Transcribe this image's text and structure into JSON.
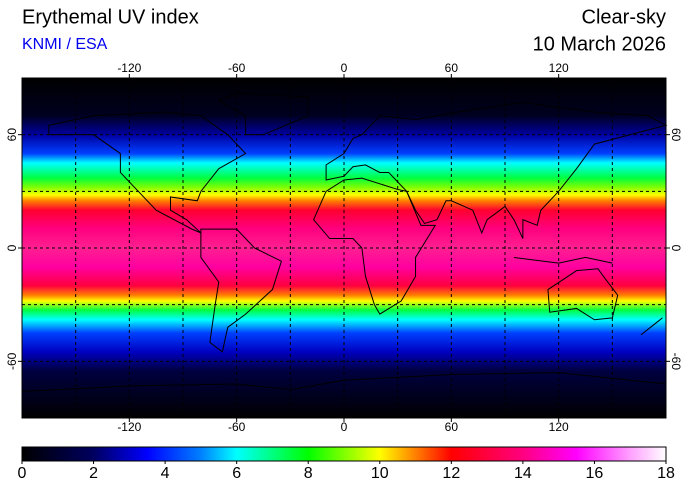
{
  "header": {
    "title": "Erythemal UV index",
    "source": "KNMI / ESA",
    "condition": "Clear-sky",
    "date": "10 March 2026"
  },
  "map": {
    "xlim": [
      -180,
      180
    ],
    "ylim": [
      -90,
      90
    ],
    "lon_ticks": [
      -120,
      -60,
      0,
      60,
      120
    ],
    "lat_ticks": [
      60,
      0,
      -60
    ],
    "grid_lon": [
      -150,
      -120,
      -90,
      -60,
      -30,
      0,
      30,
      60,
      90,
      120,
      150
    ],
    "grid_lat": [
      -60,
      -30,
      0,
      30,
      60
    ]
  },
  "colorbar": {
    "range": [
      0,
      18
    ],
    "ticks": [
      0,
      2,
      4,
      6,
      8,
      10,
      12,
      14,
      16,
      18
    ],
    "colormap": [
      {
        "value": 0,
        "color": "#000000"
      },
      {
        "value": 2,
        "color": "#000060"
      },
      {
        "value": 3.5,
        "color": "#0000ff"
      },
      {
        "value": 5,
        "color": "#0080ff"
      },
      {
        "value": 6,
        "color": "#00ffff"
      },
      {
        "value": 8,
        "color": "#00ff00"
      },
      {
        "value": 9,
        "color": "#80ff00"
      },
      {
        "value": 10,
        "color": "#ffff00"
      },
      {
        "value": 11,
        "color": "#ff8000"
      },
      {
        "value": 12,
        "color": "#ff0000"
      },
      {
        "value": 14,
        "color": "#ff0080"
      },
      {
        "value": 15.5,
        "color": "#ff00ff"
      },
      {
        "value": 17,
        "color": "#ffa0ff"
      },
      {
        "value": 18,
        "color": "#ffffff"
      }
    ]
  }
}
